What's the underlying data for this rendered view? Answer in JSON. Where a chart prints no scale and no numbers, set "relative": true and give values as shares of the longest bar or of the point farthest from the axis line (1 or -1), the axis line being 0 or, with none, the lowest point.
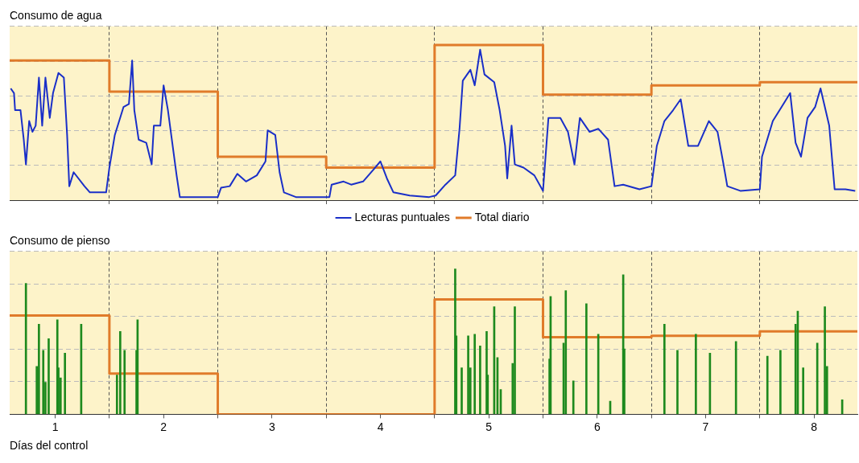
{
  "chart_data": [
    {
      "type": "line",
      "title": "Consumo de agua",
      "relative": true,
      "xlim": [
        0.58,
        8.4
      ],
      "xticks": [
        {
          "value": 1.5,
          "label": null
        },
        {
          "value": 2.5,
          "label": null
        },
        {
          "value": 3.5,
          "label": null
        },
        {
          "value": 4.5,
          "label": null
        },
        {
          "value": 5.5,
          "label": null
        },
        {
          "value": 6.5,
          "label": null
        },
        {
          "value": 7.5,
          "label": null
        }
      ],
      "tick_labels": false,
      "grid": true,
      "legend": "bottom",
      "marker": "none",
      "series": [
        {
          "name": "Lecturas puntuales",
          "color": "#1a2fc8",
          "x": [
            0.59,
            0.62,
            0.63,
            0.68,
            0.71,
            0.73,
            0.76,
            0.79,
            0.82,
            0.85,
            0.88,
            0.91,
            0.95,
            0.98,
            1.03,
            1.08,
            1.11,
            1.13,
            1.17,
            1.27,
            1.32,
            1.47,
            1.5,
            1.55,
            1.63,
            1.68,
            1.71,
            1.73,
            1.77,
            1.84,
            1.89,
            1.91,
            1.97,
            2.0,
            2.04,
            2.12,
            2.15,
            2.3,
            2.5,
            2.53,
            2.61,
            2.68,
            2.76,
            2.86,
            2.94,
            2.96,
            3.03,
            3.07,
            3.11,
            3.22,
            3.53,
            3.55,
            3.66,
            3.73,
            3.84,
            3.94,
            4.0,
            4.06,
            4.12,
            4.27,
            4.45,
            4.51,
            4.6,
            4.69,
            4.73,
            4.76,
            4.83,
            4.87,
            4.92,
            4.96,
            5.05,
            5.1,
            5.15,
            5.17,
            5.21,
            5.24,
            5.32,
            5.42,
            5.5,
            5.55,
            5.66,
            5.73,
            5.79,
            5.84,
            5.93,
            6.01,
            6.1,
            6.16,
            6.24,
            6.39,
            6.5,
            6.55,
            6.62,
            6.7,
            6.77,
            6.84,
            6.93,
            7.03,
            7.11,
            7.16,
            7.2,
            7.32,
            7.5,
            7.52,
            7.62,
            7.7,
            7.78,
            7.83,
            7.88,
            7.94,
            8.01,
            8.06,
            8.14,
            8.19,
            8.29,
            8.38
          ],
          "values": [
            0.72,
            0.69,
            0.58,
            0.58,
            0.39,
            0.23,
            0.51,
            0.44,
            0.48,
            0.79,
            0.48,
            0.79,
            0.53,
            0.69,
            0.82,
            0.79,
            0.42,
            0.09,
            0.18,
            0.09,
            0.05,
            0.05,
            0.21,
            0.42,
            0.6,
            0.62,
            0.9,
            0.58,
            0.39,
            0.37,
            0.23,
            0.48,
            0.48,
            0.74,
            0.58,
            0.16,
            0.02,
            0.02,
            0.02,
            0.08,
            0.09,
            0.17,
            0.12,
            0.16,
            0.25,
            0.45,
            0.42,
            0.18,
            0.05,
            0.02,
            0.02,
            0.1,
            0.12,
            0.1,
            0.12,
            0.2,
            0.25,
            0.14,
            0.05,
            0.03,
            0.02,
            0.03,
            0.1,
            0.16,
            0.46,
            0.77,
            0.84,
            0.74,
            0.97,
            0.81,
            0.76,
            0.58,
            0.35,
            0.14,
            0.48,
            0.23,
            0.21,
            0.16,
            0.06,
            0.53,
            0.53,
            0.44,
            0.23,
            0.53,
            0.44,
            0.46,
            0.39,
            0.09,
            0.1,
            0.07,
            0.09,
            0.35,
            0.51,
            0.58,
            0.65,
            0.35,
            0.35,
            0.51,
            0.44,
            0.25,
            0.09,
            0.06,
            0.07,
            0.28,
            0.51,
            0.6,
            0.69,
            0.37,
            0.28,
            0.53,
            0.6,
            0.72,
            0.48,
            0.07,
            0.07,
            0.06
          ]
        },
        {
          "name": "Total diario",
          "type": "step",
          "color": "#e07b2a",
          "x": [
            0.58,
            1.5,
            2.5,
            3.5,
            4.5,
            5.5,
            6.5,
            7.5,
            8.4
          ],
          "values": [
            0.9,
            0.7,
            0.28,
            0.21,
            1.0,
            0.68,
            0.74,
            0.76,
            0.76
          ]
        }
      ]
    },
    {
      "type": "bar",
      "title": "Consumo de pienso",
      "xlabel": "Días del control",
      "relative": true,
      "xlim": [
        0.58,
        8.4
      ],
      "xticks": [
        {
          "value": 1,
          "label": "1"
        },
        {
          "value": 1.5,
          "label": null
        },
        {
          "value": 2,
          "label": "2"
        },
        {
          "value": 2.5,
          "label": null
        },
        {
          "value": 3,
          "label": "3"
        },
        {
          "value": 3.5,
          "label": null
        },
        {
          "value": 4,
          "label": "4"
        },
        {
          "value": 4.5,
          "label": null
        },
        {
          "value": 5,
          "label": "5"
        },
        {
          "value": 5.5,
          "label": null
        },
        {
          "value": 6,
          "label": "6"
        },
        {
          "value": 6.5,
          "label": null
        },
        {
          "value": 7,
          "label": "7"
        },
        {
          "value": 7.5,
          "label": null
        },
        {
          "value": 8,
          "label": "8"
        }
      ],
      "tick_labels": "x",
      "grid": true,
      "legend": false,
      "series": [
        {
          "color": "#1e8a1e",
          "x": [
            0.73,
            0.83,
            0.85,
            0.89,
            0.91,
            0.94,
            1.02,
            1.03,
            1.05,
            1.09,
            1.24,
            1.57,
            1.6,
            1.64,
            1.75,
            1.76,
            4.69,
            4.7,
            4.75,
            4.81,
            4.83,
            4.87,
            4.92,
            4.98,
            4.99,
            5.05,
            5.08,
            5.11,
            5.22,
            5.24,
            5.56,
            5.57,
            5.69,
            5.71,
            5.78,
            5.9,
            6.01,
            6.12,
            6.24,
            6.25,
            6.62,
            6.74,
            6.91,
            7.04,
            7.28,
            7.57,
            7.69,
            7.83,
            7.85,
            7.9,
            8.03,
            8.1,
            8.12,
            8.26
          ],
          "values": [
            0.9,
            0.33,
            0.62,
            0.44,
            0.22,
            0.52,
            0.65,
            0.32,
            0.25,
            0.42,
            0.62,
            0.27,
            0.57,
            0.44,
            0.44,
            0.65,
            1.0,
            0.54,
            0.32,
            0.54,
            0.32,
            0.55,
            0.47,
            0.57,
            0.27,
            0.74,
            0.39,
            0.17,
            0.35,
            0.74,
            0.38,
            0.81,
            0.49,
            0.85,
            0.23,
            0.76,
            0.55,
            0.09,
            0.96,
            0.45,
            0.62,
            0.44,
            0.55,
            0.42,
            0.5,
            0.4,
            0.44,
            0.62,
            0.71,
            0.32,
            0.49,
            0.74,
            0.33,
            0.1
          ]
        },
        {
          "type": "step",
          "color": "#e07b2a",
          "x": [
            0.58,
            1.5,
            2.5,
            3.5,
            4.5,
            5.5,
            6.5,
            7.5,
            8.4
          ],
          "values": [
            0.68,
            0.28,
            0,
            0,
            0.79,
            0.53,
            0.54,
            0.57,
            0.57
          ]
        }
      ]
    }
  ]
}
